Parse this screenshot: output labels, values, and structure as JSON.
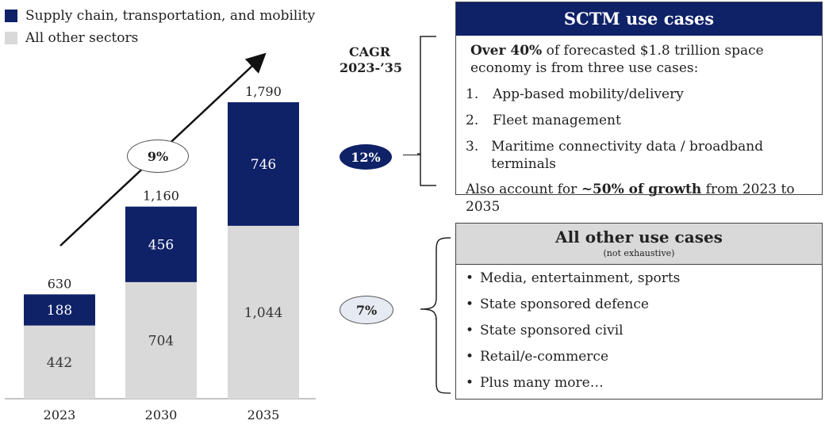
{
  "legend": {
    "supply_chain": "Supply chain, transportation, and mobility",
    "other": "All other sectors"
  },
  "colors": {
    "navy": "#0f2167",
    "grey": "#d9d9d9",
    "pill_light": "#e6ebf3"
  },
  "cagr": {
    "header_line1": "CAGR",
    "header_line2": "2023-’35",
    "overall": "9%",
    "sctm": "12%",
    "other": "7%"
  },
  "chart_data": {
    "type": "bar",
    "stacked": true,
    "categories": [
      "2023",
      "2030",
      "2035"
    ],
    "series": [
      {
        "name": "All other sectors",
        "values": [
          442,
          704,
          1044
        ],
        "labels": [
          "442",
          "704",
          "1,044"
        ]
      },
      {
        "name": "Supply chain, transportation, and mobility",
        "values": [
          188,
          456,
          746
        ],
        "labels": [
          "188",
          "456",
          "746"
        ]
      }
    ],
    "totals": [
      630,
      1160,
      1790
    ],
    "total_labels": [
      "630",
      "1,160",
      "1,790"
    ],
    "ylim": [
      0,
      1790
    ],
    "title": "",
    "xlabel": "",
    "ylabel": ""
  },
  "sctm_panel": {
    "title": "SCTM use cases",
    "intro_bold": "Over 40%",
    "intro_rest": " of forecasted $1.8 trillion space economy is from three use cases:",
    "items": [
      {
        "num": "1.",
        "text": "App-based mobility/delivery"
      },
      {
        "num": "2.",
        "text": "Fleet management"
      },
      {
        "num": "3.",
        "text": "Maritime connectivity data / broadband terminals"
      }
    ],
    "footer_pre": "Also account for ",
    "footer_bold": "~50% of growth",
    "footer_post": " from 2023 to 2035"
  },
  "other_panel": {
    "title": "All other use cases",
    "subtitle": "(not exhaustive)",
    "items": [
      "Media, entertainment, sports",
      "State sponsored defence",
      "State sponsored civil",
      "Retail/e-commerce",
      "Plus many more…"
    ]
  }
}
